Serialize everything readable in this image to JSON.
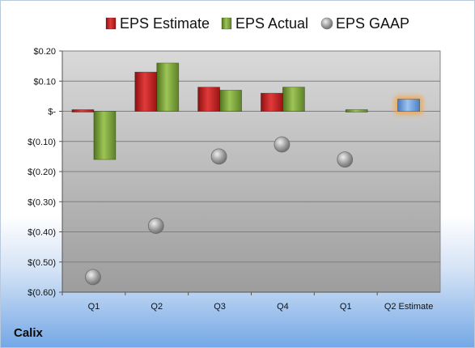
{
  "company": "Calix",
  "colors": {
    "estimate": "#cc1f1f",
    "actual": "#7aa23a",
    "gaap": "#a9a9a9",
    "q2_estimate": "#6f9fdd",
    "q2_estimate_glow": "#f4a64a"
  },
  "chart_data": {
    "type": "bar",
    "categories": [
      "Q1",
      "Q2",
      "Q3",
      "Q4",
      "Q1",
      "Q2 Estimate"
    ],
    "series": [
      {
        "name": "EPS Estimate",
        "values": [
          0.0,
          0.13,
          0.08,
          0.06,
          null,
          0.04
        ]
      },
      {
        "name": "EPS Actual",
        "values": [
          -0.16,
          0.16,
          0.07,
          0.08,
          0.0,
          null
        ]
      },
      {
        "name": "EPS GAAP",
        "values": [
          -0.55,
          -0.38,
          -0.15,
          -0.11,
          -0.16,
          null
        ]
      }
    ],
    "y_ticks": [
      "$0.20",
      "$0.10",
      "$-",
      "$(0.10)",
      "$(0.20)",
      "$(0.30)",
      "$(0.40)",
      "$(0.50)",
      "$(0.60)"
    ],
    "ylim": [
      -0.6,
      0.2
    ],
    "grid": true,
    "legend": "top"
  }
}
